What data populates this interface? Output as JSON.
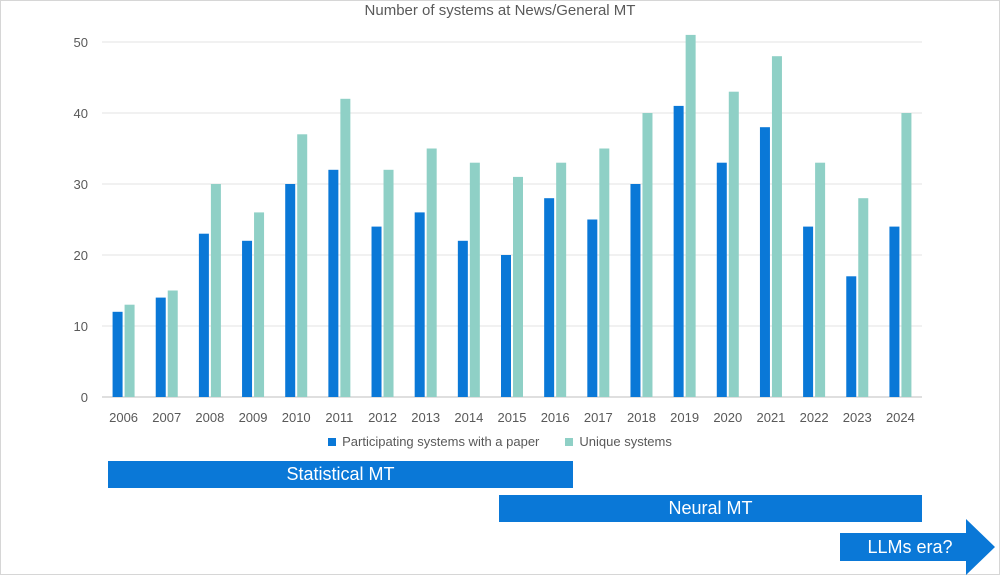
{
  "chart_data": {
    "type": "bar",
    "title": "Number of systems at News/General MT",
    "xlabel": "",
    "ylabel": "",
    "ylim": [
      0,
      50
    ],
    "yticks": [
      0,
      10,
      20,
      30,
      40,
      50
    ],
    "grid": true,
    "legend_position": "bottom",
    "categories": [
      "2006",
      "2007",
      "2008",
      "2009",
      "2010",
      "2011",
      "2012",
      "2013",
      "2014",
      "2015",
      "2016",
      "2017",
      "2018",
      "2019",
      "2020",
      "2021",
      "2022",
      "2023",
      "2024"
    ],
    "series": [
      {
        "name": "Participating systems with a paper",
        "color": "#0a78d7",
        "values": [
          12,
          14,
          23,
          22,
          30,
          32,
          24,
          26,
          22,
          20,
          28,
          25,
          30,
          41,
          33,
          38,
          24,
          17,
          24
        ]
      },
      {
        "name": "Unique systems",
        "color": "#8fd0c6",
        "values": [
          13,
          15,
          30,
          26,
          37,
          42,
          32,
          35,
          33,
          31,
          33,
          35,
          40,
          51,
          43,
          48,
          33,
          28,
          40
        ]
      }
    ]
  },
  "eras": {
    "color": "#0a78d7",
    "statistical": "Statistical MT",
    "neural": "Neural MT",
    "llm": "LLMs era?"
  }
}
